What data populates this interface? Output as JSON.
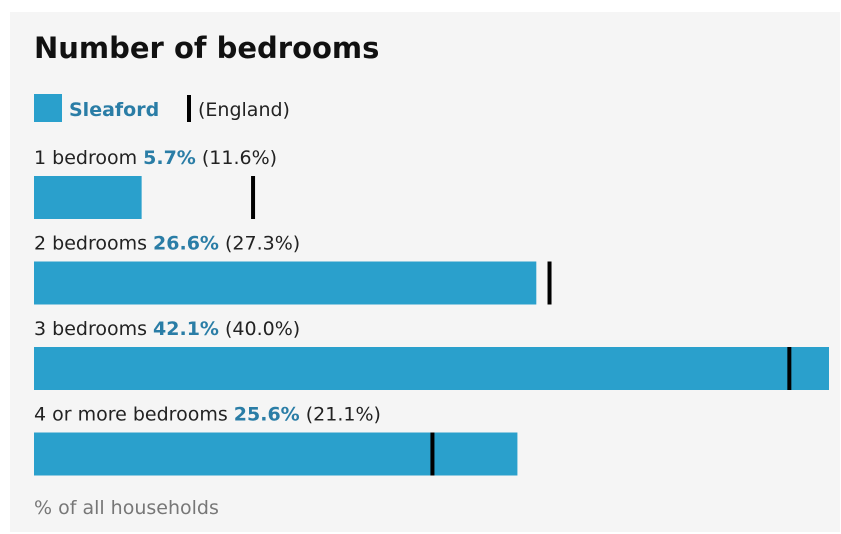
{
  "chart_data": {
    "type": "bar",
    "orientation": "horizontal",
    "title": "Number of bedrooms",
    "categories": [
      "1 bedroom",
      "2 bedrooms",
      "3 bedrooms",
      "4 or more bedrooms"
    ],
    "series": [
      {
        "name": "Sleaford",
        "color": "#2aa0cc",
        "values": [
          5.7,
          26.6,
          42.1,
          25.6
        ],
        "value_labels": [
          "5.7%",
          "26.6%",
          "42.1%",
          "25.6%"
        ]
      },
      {
        "name": "(England)",
        "color": "#000000",
        "values": [
          11.6,
          27.3,
          40.0,
          21.1
        ],
        "value_labels": [
          "(11.6%)",
          "(27.3%)",
          "(40.0%)",
          "(21.1%)"
        ]
      }
    ],
    "note": "% of all households"
  }
}
